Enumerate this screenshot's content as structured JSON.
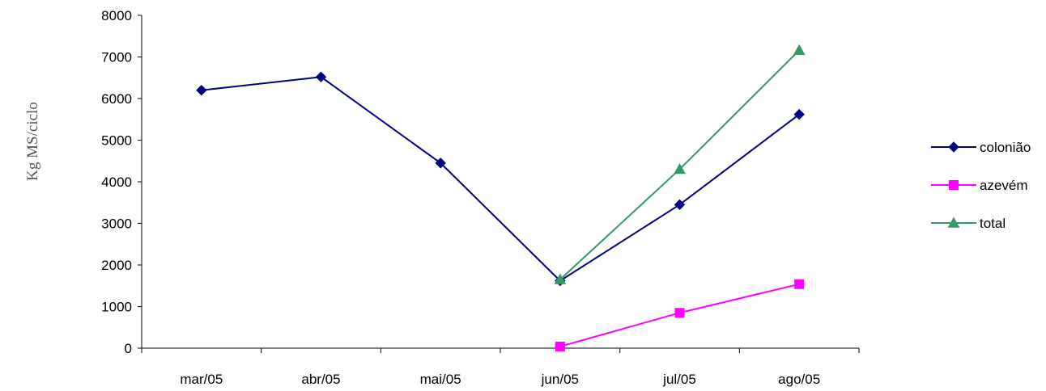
{
  "chart_data": {
    "type": "line",
    "title": "",
    "xlabel": "",
    "ylabel": "Kg MS/ciclo",
    "categories": [
      "mar/05",
      "abr/05",
      "mai/05",
      "jun/05",
      "jul/05",
      "ago/05"
    ],
    "ylim": [
      0,
      8000
    ],
    "yticks": [
      0,
      1000,
      2000,
      3000,
      4000,
      5000,
      6000,
      7000,
      8000
    ],
    "grid": false,
    "legend_position": "right",
    "series": [
      {
        "name": "colonião",
        "color": "#000080",
        "marker": "diamond",
        "values": [
          6200,
          6520,
          4450,
          1620,
          3450,
          5620
        ]
      },
      {
        "name": "azevém",
        "color": "#ff00ff",
        "marker": "square",
        "values": [
          null,
          null,
          null,
          40,
          850,
          1540
        ]
      },
      {
        "name": "total",
        "color": "#339966",
        "marker": "triangle",
        "values": [
          null,
          null,
          null,
          1650,
          4300,
          7160
        ]
      }
    ]
  }
}
